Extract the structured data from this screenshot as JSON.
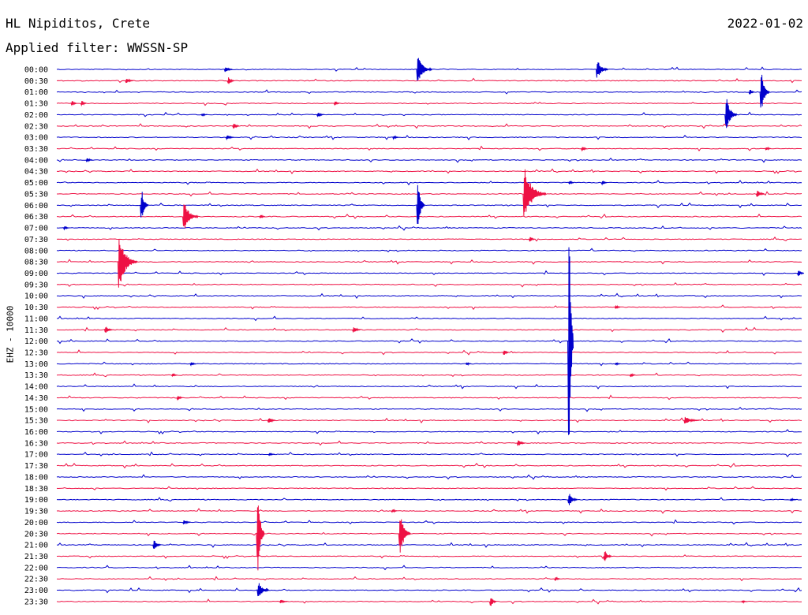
{
  "header": {
    "station": "HL Nipiditos, Crete",
    "date": "2022-01-02",
    "filter": "Applied filter: WWSSN-SP"
  },
  "chart_data": {
    "type": "line",
    "ylabel": "EHZ - 10000",
    "colors": [
      "#0000cc",
      "#ee1144"
    ],
    "rows": [
      "00:00",
      "00:30",
      "01:00",
      "01:30",
      "02:00",
      "02:30",
      "03:00",
      "03:30",
      "04:00",
      "04:30",
      "05:00",
      "05:30",
      "06:00",
      "06:30",
      "07:00",
      "07:30",
      "08:00",
      "08:30",
      "09:00",
      "09:30",
      "10:00",
      "10:30",
      "11:00",
      "11:30",
      "12:00",
      "12:30",
      "13:00",
      "13:30",
      "14:00",
      "14:30",
      "15:00",
      "15:30",
      "16:00",
      "16:30",
      "17:00",
      "17:30",
      "18:00",
      "18:30",
      "19:00",
      "19:30",
      "20:00",
      "20:30",
      "21:00",
      "21:30",
      "22:00",
      "22:30",
      "23:00",
      "23:30"
    ],
    "events": [
      {
        "row": 0,
        "x": 0.226,
        "amp": 0.5,
        "dur": 0.01
      },
      {
        "row": 0,
        "x": 0.484,
        "amp": 2.1,
        "dur": 0.02
      },
      {
        "row": 0,
        "x": 0.725,
        "amp": 1.5,
        "dur": 0.015
      },
      {
        "row": 1,
        "x": 0.093,
        "amp": 0.4,
        "dur": 0.01
      },
      {
        "row": 1,
        "x": 0.23,
        "amp": 0.6,
        "dur": 0.008
      },
      {
        "row": 2,
        "x": 0.93,
        "amp": 0.4,
        "dur": 0.006
      },
      {
        "row": 2,
        "x": 0.945,
        "amp": 3.2,
        "dur": 0.012
      },
      {
        "row": 3,
        "x": 0.02,
        "amp": 0.4,
        "dur": 0.005
      },
      {
        "row": 3,
        "x": 0.033,
        "amp": 0.4,
        "dur": 0.005
      },
      {
        "row": 3,
        "x": 0.373,
        "amp": 0.3,
        "dur": 0.005
      },
      {
        "row": 4,
        "x": 0.195,
        "amp": 0.2,
        "dur": 0.006
      },
      {
        "row": 4,
        "x": 0.35,
        "amp": 0.4,
        "dur": 0.008
      },
      {
        "row": 4,
        "x": 0.898,
        "amp": 2.9,
        "dur": 0.015
      },
      {
        "row": 5,
        "x": 0.237,
        "amp": 0.5,
        "dur": 0.008
      },
      {
        "row": 6,
        "x": 0.228,
        "amp": 0.4,
        "dur": 0.01
      },
      {
        "row": 6,
        "x": 0.452,
        "amp": 0.3,
        "dur": 0.006
      },
      {
        "row": 7,
        "x": 0.705,
        "amp": 0.4,
        "dur": 0.006
      },
      {
        "row": 7,
        "x": 0.952,
        "amp": 0.3,
        "dur": 0.006
      },
      {
        "row": 8,
        "x": 0.04,
        "amp": 0.3,
        "dur": 0.008
      },
      {
        "row": 10,
        "x": 0.688,
        "amp": 0.3,
        "dur": 0.006
      },
      {
        "row": 10,
        "x": 0.732,
        "amp": 0.3,
        "dur": 0.006
      },
      {
        "row": 11,
        "x": 0.627,
        "amp": 4.5,
        "dur": 0.03
      },
      {
        "row": 11,
        "x": 0.94,
        "amp": 0.6,
        "dur": 0.01
      },
      {
        "row": 12,
        "x": 0.113,
        "amp": 2.4,
        "dur": 0.01
      },
      {
        "row": 12,
        "x": 0.484,
        "amp": 3.6,
        "dur": 0.01
      },
      {
        "row": 13,
        "x": 0.17,
        "amp": 2.5,
        "dur": 0.02
      },
      {
        "row": 13,
        "x": 0.273,
        "amp": 0.3,
        "dur": 0.006
      },
      {
        "row": 14,
        "x": 0.01,
        "amp": 0.3,
        "dur": 0.005
      },
      {
        "row": 15,
        "x": 0.635,
        "amp": 0.4,
        "dur": 0.006
      },
      {
        "row": 17,
        "x": 0.083,
        "amp": 4.6,
        "dur": 0.025
      },
      {
        "row": 18,
        "x": 0.995,
        "amp": 0.5,
        "dur": 0.008
      },
      {
        "row": 21,
        "x": 0.75,
        "amp": 0.3,
        "dur": 0.006
      },
      {
        "row": 23,
        "x": 0.065,
        "amp": 0.6,
        "dur": 0.01
      },
      {
        "row": 23,
        "x": 0.398,
        "amp": 0.5,
        "dur": 0.01
      },
      {
        "row": 24,
        "x": 0.687,
        "amp": 21,
        "dur": 0.005
      },
      {
        "row": 25,
        "x": 0.6,
        "amp": 0.4,
        "dur": 0.006
      },
      {
        "row": 26,
        "x": 0.18,
        "amp": 0.3,
        "dur": 0.005
      },
      {
        "row": 26,
        "x": 0.55,
        "amp": 0.2,
        "dur": 0.005
      },
      {
        "row": 26,
        "x": 0.75,
        "amp": 0.2,
        "dur": 0.005
      },
      {
        "row": 27,
        "x": 0.155,
        "amp": 0.3,
        "dur": 0.005
      },
      {
        "row": 27,
        "x": 0.77,
        "amp": 0.3,
        "dur": 0.005
      },
      {
        "row": 29,
        "x": 0.162,
        "amp": 0.4,
        "dur": 0.006
      },
      {
        "row": 31,
        "x": 0.284,
        "amp": 0.5,
        "dur": 0.01
      },
      {
        "row": 31,
        "x": 0.843,
        "amp": 0.6,
        "dur": 0.02
      },
      {
        "row": 33,
        "x": 0.619,
        "amp": 0.5,
        "dur": 0.01
      },
      {
        "row": 34,
        "x": 0.285,
        "amp": 0.2,
        "dur": 0.008
      },
      {
        "row": 38,
        "x": 0.687,
        "amp": 1.0,
        "dur": 0.012
      },
      {
        "row": 38,
        "x": 0.985,
        "amp": 0.2,
        "dur": 0.008
      },
      {
        "row": 39,
        "x": 0.45,
        "amp": 0.3,
        "dur": 0.005
      },
      {
        "row": 40,
        "x": 0.17,
        "amp": 0.4,
        "dur": 0.01
      },
      {
        "row": 41,
        "x": 0.269,
        "amp": 6.5,
        "dur": 0.01
      },
      {
        "row": 41,
        "x": 0.46,
        "amp": 3.7,
        "dur": 0.015
      },
      {
        "row": 42,
        "x": 0.13,
        "amp": 0.8,
        "dur": 0.01
      },
      {
        "row": 43,
        "x": 0.735,
        "amp": 0.9,
        "dur": 0.01
      },
      {
        "row": 45,
        "x": 0.669,
        "amp": 0.3,
        "dur": 0.006
      },
      {
        "row": 46,
        "x": 0.27,
        "amp": 1.3,
        "dur": 0.015
      },
      {
        "row": 47,
        "x": 0.3,
        "amp": 0.3,
        "dur": 0.01
      },
      {
        "row": 47,
        "x": 0.582,
        "amp": 0.8,
        "dur": 0.008
      },
      {
        "row": 47,
        "x": 0.92,
        "amp": 0.2,
        "dur": 0.006
      }
    ]
  }
}
